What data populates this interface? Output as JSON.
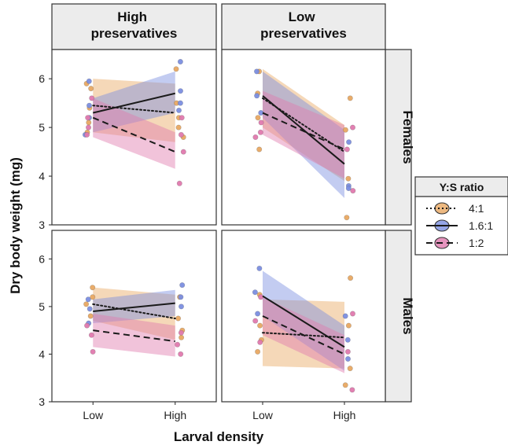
{
  "chart_data": {
    "type": "line",
    "xlabel": "Larval density",
    "ylabel": "Dry body weight (mg)",
    "x_categories": [
      "Low",
      "High"
    ],
    "column_labels": [
      "High\npreservatives",
      "Low\npreservatives"
    ],
    "row_labels": [
      "Females",
      "Males"
    ],
    "ylim": [
      3,
      6.6
    ],
    "yticks": [
      3,
      4,
      5,
      6
    ],
    "legend": {
      "title": "Y:S ratio",
      "placement": "right",
      "entries": [
        {
          "name": "4:1",
          "linestyle": "dotted",
          "color": "#e8a862"
        },
        {
          "name": "1.6:1",
          "linestyle": "solid",
          "color": "#7b8ee0"
        },
        {
          "name": "1:2",
          "linestyle": "dashed",
          "color": "#e079ae"
        }
      ]
    },
    "panels": [
      {
        "row": "Females",
        "column": "High\npreservatives",
        "series": [
          {
            "name": "4:1",
            "line": [
              5.45,
              5.3
            ],
            "ci_low": [
              4.9,
              4.7
            ],
            "ci_high": [
              6.0,
              5.9
            ],
            "points_low": [
              5.9,
              5.8,
              5.4,
              5.1,
              4.9
            ],
            "points_high": [
              6.2,
              5.5,
              5.2,
              5.0,
              4.8
            ]
          },
          {
            "name": "1.6:1",
            "line": [
              5.3,
              5.7
            ],
            "ci_low": [
              4.9,
              5.3
            ],
            "ci_high": [
              5.6,
              6.15
            ],
            "points_low": [
              5.95,
              5.45,
              5.2,
              4.85
            ],
            "points_high": [
              6.35,
              5.75,
              5.5,
              5.35
            ]
          },
          {
            "name": "1:2",
            "line": [
              5.2,
              4.5
            ],
            "ci_low": [
              4.8,
              4.15
            ],
            "ci_high": [
              5.6,
              4.9
            ],
            "points_low": [
              5.6,
              5.2,
              5.0,
              4.85
            ],
            "points_high": [
              5.2,
              4.85,
              4.5,
              3.85
            ]
          }
        ]
      },
      {
        "row": "Females",
        "column": "Low\npreservatives",
        "series": [
          {
            "name": "4:1",
            "line": [
              5.6,
              4.5
            ],
            "ci_low": [
              5.0,
              3.9
            ],
            "ci_high": [
              6.2,
              5.05
            ],
            "points_low": [
              6.15,
              5.7,
              5.2,
              4.55
            ],
            "points_high": [
              5.6,
              4.95,
              3.95,
              3.15
            ]
          },
          {
            "name": "1.6:1",
            "line": [
              5.65,
              4.25
            ],
            "ci_low": [
              5.2,
              3.55
            ],
            "ci_high": [
              6.15,
              4.95
            ],
            "points_low": [
              6.15,
              5.65,
              5.3
            ],
            "points_high": [
              4.7,
              3.8,
              3.75
            ]
          },
          {
            "name": "1:2",
            "line": [
              5.3,
              4.55
            ],
            "ci_low": [
              4.85,
              3.95
            ],
            "ci_high": [
              5.75,
              5.05
            ],
            "points_low": [
              5.1,
              4.9,
              4.8
            ],
            "points_high": [
              5.0,
              4.55,
              3.7
            ]
          }
        ]
      },
      {
        "row": "Males",
        "column": "High\npreservatives",
        "series": [
          {
            "name": "4:1",
            "line": [
              5.05,
              4.75
            ],
            "ci_low": [
              4.7,
              4.3
            ],
            "ci_high": [
              5.4,
              5.25
            ],
            "points_low": [
              5.4,
              5.2,
              5.05,
              4.8
            ],
            "points_high": [
              5.2,
              4.75,
              4.5,
              4.35
            ]
          },
          {
            "name": "1.6:1",
            "line": [
              4.9,
              5.07
            ],
            "ci_low": [
              4.65,
              4.8
            ],
            "ci_high": [
              5.15,
              5.35
            ],
            "points_low": [
              5.15,
              4.95,
              4.65
            ],
            "points_high": [
              5.45,
              5.2,
              5.0
            ]
          },
          {
            "name": "1:2",
            "line": [
              4.5,
              4.27
            ],
            "ci_low": [
              4.15,
              3.95
            ],
            "ci_high": [
              4.85,
              4.6
            ],
            "points_low": [
              4.6,
              4.4,
              4.05
            ],
            "points_high": [
              4.45,
              4.2,
              4.0
            ]
          }
        ]
      },
      {
        "row": "Males",
        "column": "Low\npreservatives",
        "series": [
          {
            "name": "4:1",
            "line": [
              4.45,
              4.35
            ],
            "ci_low": [
              3.75,
              3.7
            ],
            "ci_high": [
              5.15,
              5.1
            ],
            "points_low": [
              5.25,
              4.6,
              4.3,
              4.05
            ],
            "points_high": [
              5.6,
              4.6,
              3.7,
              3.35
            ]
          },
          {
            "name": "1.6:1",
            "line": [
              5.22,
              4.15
            ],
            "ci_low": [
              4.8,
              3.65
            ],
            "ci_high": [
              5.75,
              4.6
            ],
            "points_low": [
              5.8,
              5.3,
              4.85
            ],
            "points_high": [
              4.8,
              4.3,
              3.9
            ]
          },
          {
            "name": "1:2",
            "line": [
              4.8,
              4.0
            ],
            "ci_low": [
              4.4,
              3.6
            ],
            "ci_high": [
              5.2,
              4.4
            ],
            "points_low": [
              5.2,
              4.7,
              4.25
            ],
            "points_high": [
              4.85,
              4.05,
              3.25
            ]
          }
        ]
      }
    ]
  }
}
